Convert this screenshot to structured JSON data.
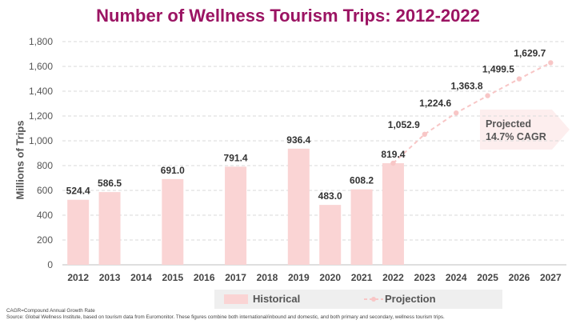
{
  "title": "Number of Wellness Tourism Trips: 2012-2022",
  "colors": {
    "title": "#9b1463",
    "historical_bar": "#fad4d4",
    "projection_line": "#f8c6c6",
    "grid": "#d9d9d9",
    "axis_text": "#555555"
  },
  "chart_data": {
    "type": "bar",
    "ylabel": "Millions of Trips",
    "ylim": [
      0,
      1800
    ],
    "yticks": [
      "0",
      "200",
      "400",
      "600",
      "800",
      "1,000",
      "1,200",
      "1,400",
      "1,600",
      "1,800"
    ],
    "grid": "horizontal dashed",
    "categories": [
      "2012",
      "2013",
      "2014",
      "2015",
      "2016",
      "2017",
      "2018",
      "2019",
      "2020",
      "2021",
      "2022",
      "2023",
      "2024",
      "2025",
      "2026",
      "2027"
    ],
    "series": [
      {
        "name": "Historical",
        "kind": "bar",
        "values": [
          524.4,
          586.5,
          null,
          691.0,
          null,
          791.4,
          null,
          936.4,
          483.0,
          608.2,
          819.4,
          null,
          null,
          null,
          null,
          null
        ],
        "labels": [
          "524.4",
          "586.5",
          "",
          "691.0",
          "",
          "791.4",
          "",
          "936.4",
          "483.0",
          "608.2",
          "819.4",
          "",
          "",
          "",
          "",
          ""
        ]
      },
      {
        "name": "Projection",
        "kind": "dashed-line",
        "values": [
          null,
          null,
          null,
          null,
          null,
          null,
          null,
          null,
          null,
          null,
          819.4,
          1052.9,
          1224.6,
          1363.8,
          1499.5,
          1629.7
        ],
        "labels": [
          "",
          "",
          "",
          "",
          "",
          "",
          "",
          "",
          "",
          "",
          "",
          "1,052.9",
          "1,224.6",
          "1,363.8",
          "1,499.5",
          "1,629.7"
        ]
      }
    ],
    "legend": "bottom",
    "annotation": {
      "line1": "Projected",
      "line2": "14.7% CAGR"
    }
  },
  "footnote": {
    "line1": "CAGR=Compound Annual Growth Rate",
    "line2": "Source: Global Wellness Institute, based on tourism data from Euromonitor. These figures combine both international/inbound and domestic, and both primary and secondary, wellness tourism trips."
  }
}
